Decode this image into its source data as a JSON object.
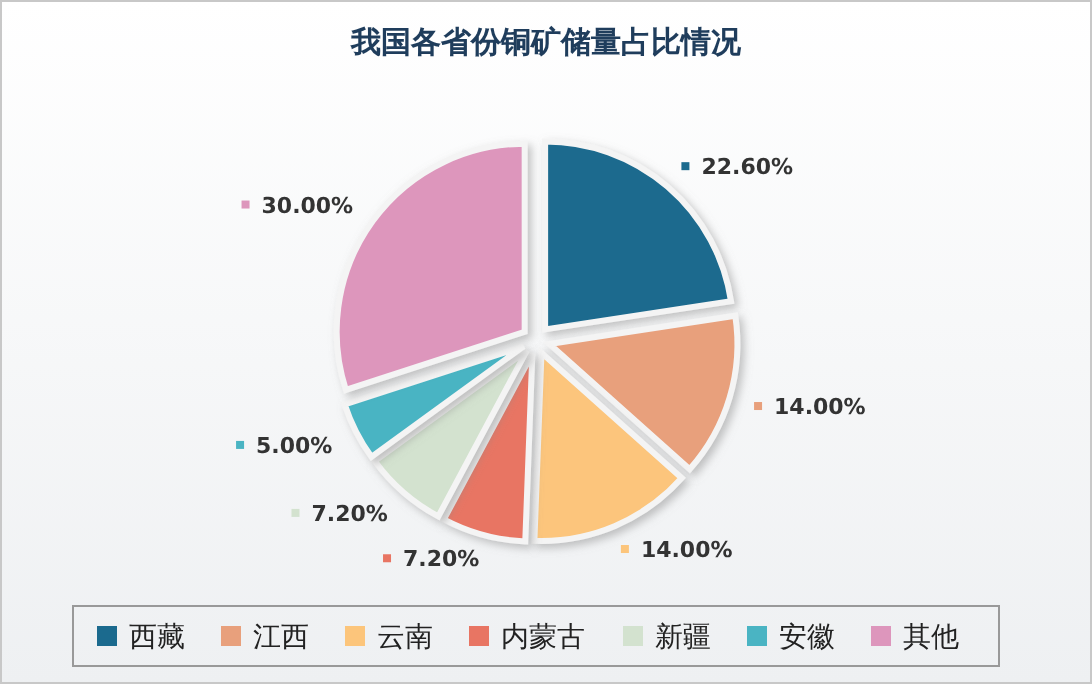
{
  "chart_data": {
    "type": "pie",
    "title": "我国各省份铜矿储量占比情况",
    "categories": [
      "西藏",
      "江西",
      "云南",
      "内蒙古",
      "新疆",
      "安徽",
      "其他"
    ],
    "values": [
      22.6,
      14,
      14,
      7.2,
      7.2,
      5,
      30
    ],
    "colors": [
      "#1b6a8e",
      "#e8a07c",
      "#fcc57b",
      "#e87563",
      "#d3e2cf",
      "#4ab4c3",
      "#dd96bc"
    ],
    "value_labels": [
      "22.60%",
      "14.00%",
      "14.00%",
      "7.20%",
      "7.20%",
      "5.00%",
      "30.00%"
    ],
    "legend": "bottom"
  }
}
